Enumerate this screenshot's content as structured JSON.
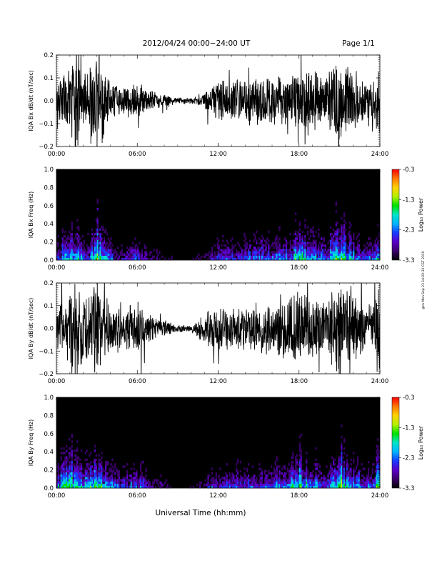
{
  "header": {
    "title": "2012/04/24  00:00−24:00 UT",
    "page": "Page 1/1"
  },
  "footer": {
    "xlabel": "Universal Time (hh:mm)"
  },
  "side_stamp": "gen Mon Sep 23 14:20:31 CST 2019",
  "time_ticks": [
    "00:00",
    "06:00",
    "12:00",
    "18:00",
    "24:00"
  ],
  "colorbar": {
    "label": "Log₁₀ Power",
    "ticks": [
      "-0.3",
      "-1.3",
      "-2.3",
      "-3.3"
    ],
    "range": [
      -3.3,
      -0.3
    ],
    "colors": [
      "#000000",
      "#3a006a",
      "#5a00c8",
      "#1a3cff",
      "#00b4ff",
      "#00e6c8",
      "#00e000",
      "#b4f000",
      "#ffd200",
      "#ff7800",
      "#ff0000"
    ]
  },
  "chart_data": [
    {
      "type": "line",
      "ylabel": "IQA Bx dB/dt (nT/sec)",
      "xlim": [
        0,
        24
      ],
      "ylim": [
        -0.2,
        0.2
      ],
      "yticks": [
        "0.2",
        "0.1",
        "0.0",
        "−0.1",
        "−0.2"
      ],
      "series": [
        {
          "x": [
            0,
            1,
            1.5,
            2,
            2.5,
            3,
            4,
            5,
            6,
            6.5,
            7,
            8,
            9,
            10,
            11,
            12,
            13,
            14,
            15,
            16,
            17,
            18,
            19,
            20,
            21,
            21.5,
            22,
            23,
            23.5,
            24
          ],
          "values": [
            0.08,
            0.15,
            0.25,
            0.12,
            0.18,
            0.25,
            0.09,
            0.08,
            0.1,
            0.08,
            0.05,
            0.03,
            0.015,
            0.015,
            0.05,
            0.09,
            0.1,
            0.1,
            0.13,
            0.12,
            0.12,
            0.16,
            0.16,
            0.12,
            0.25,
            0.18,
            0.15,
            0.1,
            0.12,
            0.25
          ]
        }
      ]
    },
    {
      "type": "heatmap",
      "ylabel": "IQA Bx Freq (Hz)",
      "xlim": [
        0,
        24
      ],
      "ylim": [
        0.0,
        1.0
      ],
      "yticks": [
        "1.0",
        "0.8",
        "0.6",
        "0.4",
        "0.2",
        "0.0"
      ],
      "colorbar_label": "Log₁₀ Power",
      "colorbar_range": [
        -3.3,
        -0.3
      ],
      "x": [
        0,
        1,
        1.5,
        2,
        2.5,
        3,
        4,
        5,
        6,
        6.5,
        7,
        8,
        9,
        10,
        11,
        12,
        13,
        14,
        15,
        16,
        17,
        18,
        19,
        20,
        21,
        21.5,
        22,
        23,
        23.5,
        24
      ],
      "activity": [
        0.5,
        0.8,
        1.0,
        0.6,
        0.7,
        1.0,
        0.5,
        0.4,
        0.5,
        0.4,
        0.3,
        0.2,
        0.1,
        0.1,
        0.25,
        0.5,
        0.5,
        0.5,
        0.6,
        0.6,
        0.6,
        0.8,
        0.7,
        0.6,
        1.0,
        0.8,
        0.7,
        0.5,
        0.6,
        0.9
      ]
    },
    {
      "type": "line",
      "ylabel": "IQA By dB/dt (nT/sec)",
      "xlim": [
        0,
        24
      ],
      "ylim": [
        -0.2,
        0.2
      ],
      "yticks": [
        "0.2",
        "0.1",
        "0.0",
        "−0.1",
        "−0.2"
      ],
      "series": [
        {
          "x": [
            0,
            1,
            1.5,
            2,
            2.5,
            3,
            4,
            5,
            6,
            6.5,
            7,
            8,
            9,
            10,
            11,
            12,
            13,
            14,
            15,
            16,
            17,
            18,
            19,
            20,
            21,
            21.5,
            22,
            23,
            23.5,
            24
          ],
          "values": [
            0.1,
            0.18,
            0.25,
            0.15,
            0.2,
            0.25,
            0.12,
            0.1,
            0.12,
            0.1,
            0.06,
            0.04,
            0.02,
            0.015,
            0.08,
            0.12,
            0.1,
            0.1,
            0.12,
            0.13,
            0.14,
            0.18,
            0.14,
            0.12,
            0.25,
            0.2,
            0.16,
            0.12,
            0.14,
            0.25
          ]
        }
      ]
    },
    {
      "type": "heatmap",
      "ylabel": "IQA By Freq (Hz)",
      "xlim": [
        0,
        24
      ],
      "ylim": [
        0.0,
        1.0
      ],
      "yticks": [
        "1.0",
        "0.8",
        "0.6",
        "0.4",
        "0.2",
        "0.0"
      ],
      "colorbar_label": "Log₁₀ Power",
      "colorbar_range": [
        -3.3,
        -0.3
      ],
      "x": [
        0,
        1,
        1.5,
        2,
        2.5,
        3,
        4,
        5,
        6,
        6.5,
        7,
        8,
        9,
        10,
        11,
        12,
        13,
        14,
        15,
        16,
        17,
        18,
        19,
        20,
        21,
        21.5,
        22,
        23,
        23.5,
        24
      ],
      "activity": [
        0.6,
        0.9,
        1.0,
        0.7,
        0.8,
        1.0,
        0.6,
        0.5,
        0.6,
        0.5,
        0.35,
        0.25,
        0.12,
        0.1,
        0.3,
        0.55,
        0.5,
        0.5,
        0.6,
        0.65,
        0.65,
        0.85,
        0.7,
        0.6,
        1.0,
        0.85,
        0.75,
        0.55,
        0.65,
        0.95
      ]
    }
  ]
}
